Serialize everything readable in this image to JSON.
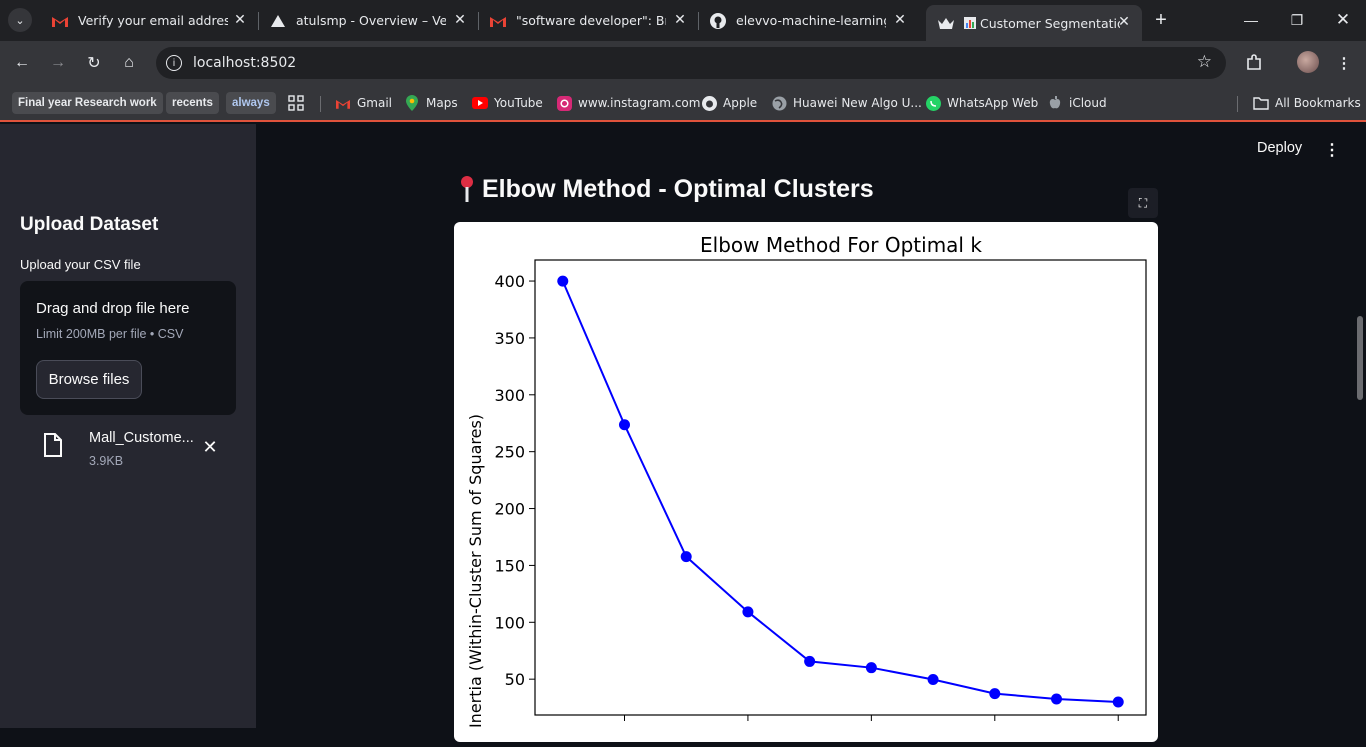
{
  "browser": {
    "tabs": [
      {
        "title": "Verify your email address - c",
        "icon": "gmail-icon"
      },
      {
        "title": "atulsmp - Overview – Vercel",
        "icon": "vercel-icon"
      },
      {
        "title": "\"software developer\": Braint",
        "icon": "gmail-icon"
      },
      {
        "title": "elevvo-machine-learning/Ta",
        "icon": "github-icon"
      },
      {
        "title": "Customer Segmentation",
        "icon": "streamlit-icon",
        "active": true
      }
    ],
    "url": "localhost:8502",
    "bookmarks": [
      {
        "label": "Final year Research work",
        "type": "chip"
      },
      {
        "label": "recents",
        "type": "chip"
      },
      {
        "label": "always",
        "type": "chip"
      },
      {
        "label": "Gmail",
        "icon": "gmail-icon"
      },
      {
        "label": "Maps",
        "icon": "maps-icon"
      },
      {
        "label": "YouTube",
        "icon": "youtube-icon"
      },
      {
        "label": "www.instagram.com",
        "icon": "instagram-icon"
      },
      {
        "label": "Apple",
        "icon": "apple-icon"
      },
      {
        "label": "Huawei New Algo U...",
        "icon": "globe-icon"
      },
      {
        "label": "WhatsApp Web",
        "icon": "whatsapp-icon"
      },
      {
        "label": "iCloud",
        "icon": "apple-icon"
      }
    ],
    "all_bookmarks": "All Bookmarks"
  },
  "sidebar": {
    "title": "Upload Dataset",
    "upload_label": "Upload your CSV file",
    "dropzone_title": "Drag and drop file here",
    "dropzone_limit": "Limit 200MB per file • CSV",
    "browse_label": "Browse files",
    "file_name": "Mall_Custome...",
    "file_size": "3.9KB"
  },
  "main": {
    "deploy_label": "Deploy",
    "heading": "Elbow Method - Optimal Clusters",
    "heading_icon": "pin-icon"
  },
  "chart_data": {
    "type": "line",
    "title": "Elbow Method For Optimal k",
    "xlabel": "",
    "ylabel": "Inertia (Within-Cluster Sum of Squares)",
    "x": [
      1,
      2,
      3,
      4,
      5,
      6,
      7,
      8,
      9,
      10
    ],
    "series": [
      {
        "color": "#0000ff",
        "values": [
          399.9,
          273.7,
          157.7,
          109.2,
          65.6,
          60.1,
          49.7,
          37.3,
          32.6,
          29.9
        ]
      }
    ],
    "yticks": [
      50,
      100,
      150,
      200,
      250,
      300,
      350,
      400
    ],
    "xlim": [
      0.55,
      10.45
    ],
    "ylim": [
      18.5,
      418.5
    ],
    "grid": false
  }
}
